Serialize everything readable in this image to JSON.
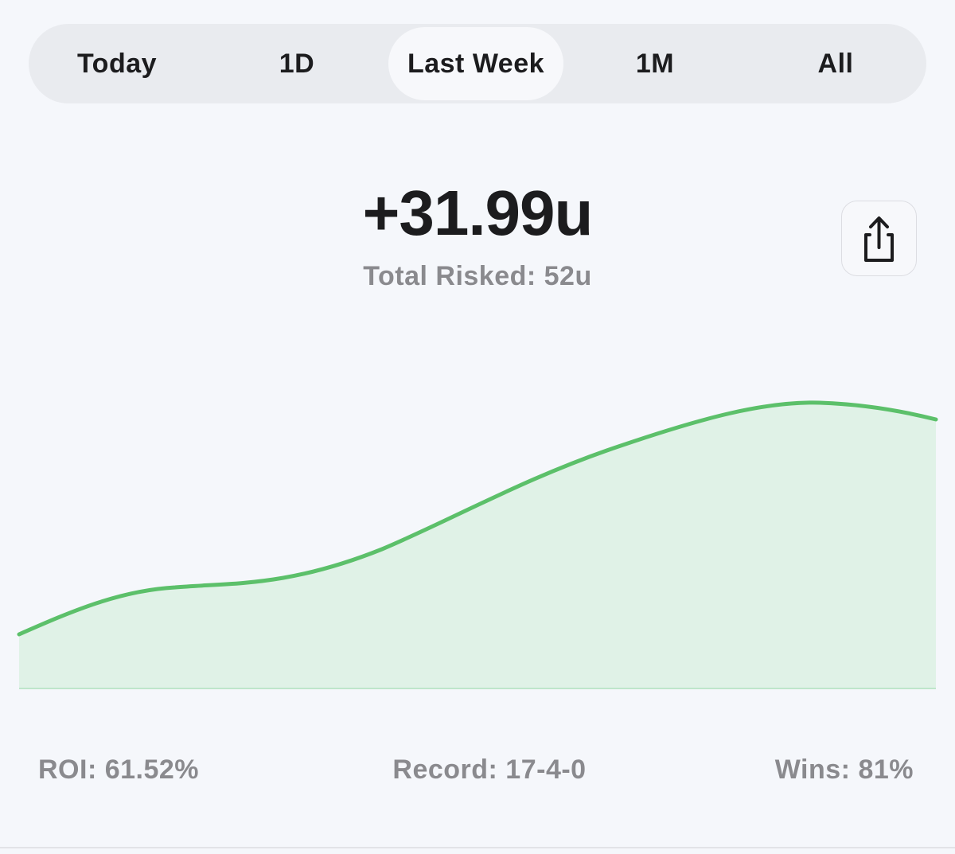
{
  "tabs": [
    "Today",
    "1D",
    "Last Week",
    "1M",
    "All"
  ],
  "selected_tab": 2,
  "summary": {
    "total": "+31.99u",
    "subtitle": "Total Risked: 52u"
  },
  "stats": [
    "ROI: 61.52%",
    "Record: 17-4-0",
    "Wins: 81%"
  ]
}
